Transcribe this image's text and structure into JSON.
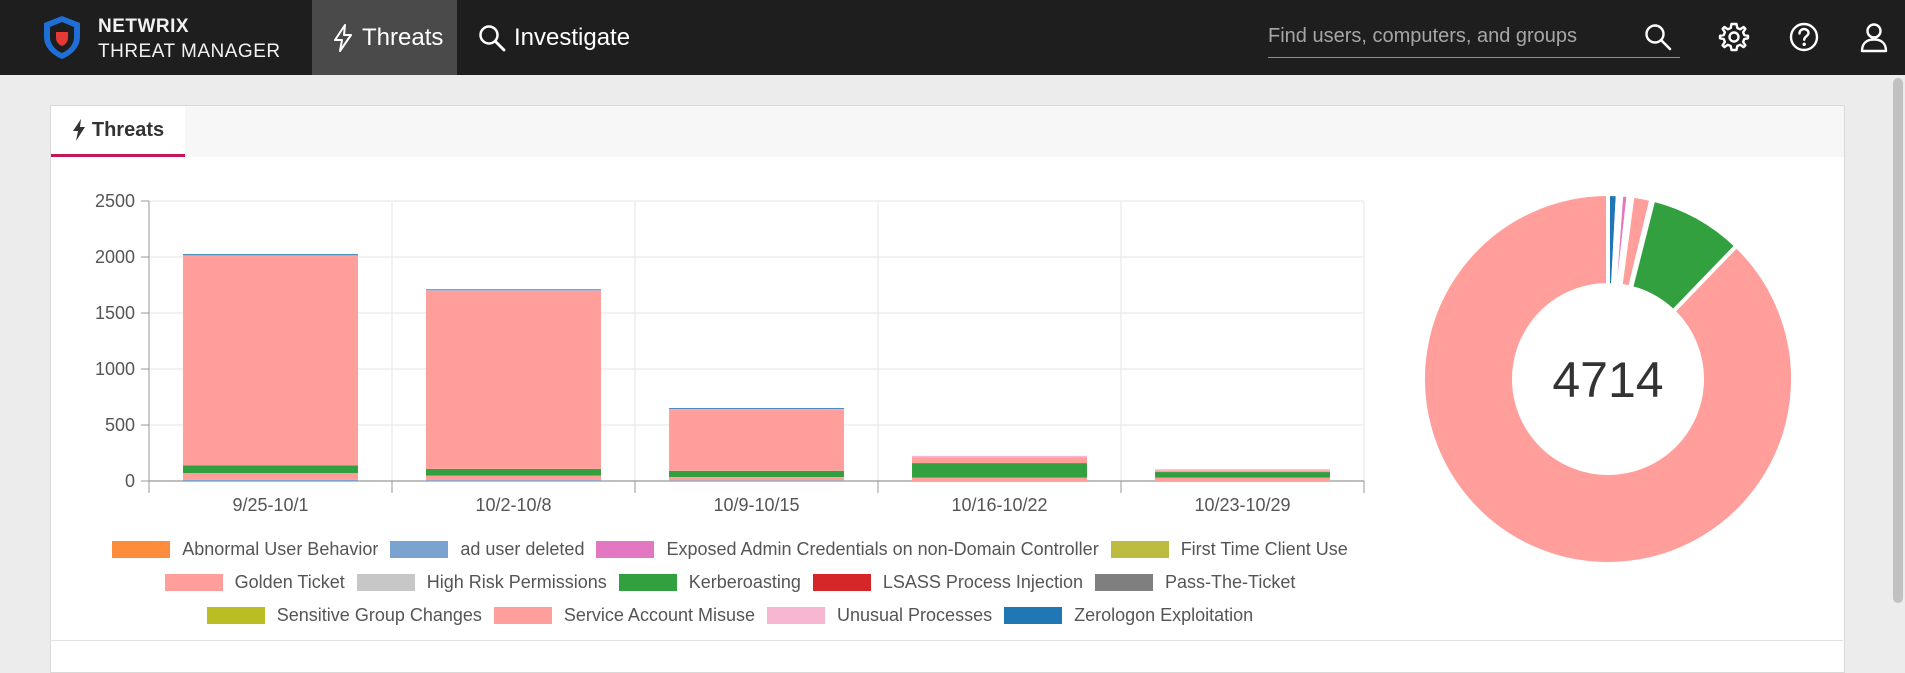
{
  "app": {
    "brand_line1": "NETWRIX",
    "brand_line2": "THREAT MANAGER"
  },
  "nav": {
    "threats_label": "Threats",
    "investigate_label": "Investigate"
  },
  "search": {
    "placeholder": "Find users, computers, and groups"
  },
  "icons": {
    "logo": "netwrix-shield-icon",
    "threats": "lightning-bolt-icon",
    "investigate": "magnifier-icon",
    "search": "search-icon",
    "settings": "gear-icon",
    "help": "question-circle-icon",
    "user": "user-icon"
  },
  "panel": {
    "tab_label": "Threats"
  },
  "colors": {
    "accent": "#c2185b",
    "topbar": "#1e1e1e"
  },
  "chart_data": [
    {
      "type": "bar",
      "stacked": true,
      "categories": [
        "9/25-10/1",
        "10/2-10/8",
        "10/9-10/15",
        "10/16-10/22",
        "10/23-10/29"
      ],
      "ylim": [
        0,
        2500
      ],
      "yticks": [
        0,
        500,
        1000,
        1500,
        2000,
        2500
      ],
      "grid": true,
      "legend_position": "bottom",
      "series": [
        {
          "name": "Abnormal User Behavior",
          "color": "#fd8d3c",
          "values": [
            0,
            0,
            0,
            0,
            0
          ]
        },
        {
          "name": "ad user deleted",
          "color": "#7ba3cf",
          "values": [
            10,
            8,
            6,
            0,
            0
          ]
        },
        {
          "name": "Exposed Admin Credentials on non-Domain Controller",
          "color": "#e377c2",
          "values": [
            0,
            0,
            0,
            0,
            0
          ]
        },
        {
          "name": "First Time Client Use",
          "color": "#bcbd40",
          "values": [
            0,
            0,
            0,
            0,
            0
          ]
        },
        {
          "name": "Golden Ticket",
          "color": "#ff9e9a",
          "values": [
            60,
            40,
            30,
            30,
            30
          ]
        },
        {
          "name": "High Risk Permissions",
          "color": "#c7c7c7",
          "values": [
            0,
            0,
            0,
            0,
            0
          ]
        },
        {
          "name": "Kerberoasting",
          "color": "#33a040",
          "values": [
            70,
            60,
            55,
            130,
            50
          ]
        },
        {
          "name": "LSASS Process Injection",
          "color": "#d62728",
          "values": [
            0,
            0,
            0,
            0,
            0
          ]
        },
        {
          "name": "Pass-The-Ticket",
          "color": "#7f7f7f",
          "values": [
            0,
            0,
            0,
            0,
            0
          ]
        },
        {
          "name": "Sensitive Group Changes",
          "color": "#bcbd22",
          "values": [
            0,
            0,
            0,
            0,
            0
          ]
        },
        {
          "name": "Service Account Misuse",
          "color": "#ff9e9a",
          "values": [
            1870,
            1590,
            550,
            50,
            15
          ]
        },
        {
          "name": "Unusual Processes",
          "color": "#f7b6d2",
          "values": [
            5,
            5,
            5,
            15,
            10
          ]
        },
        {
          "name": "Zerologon Exploitation",
          "color": "#1f77b4",
          "values": [
            10,
            8,
            6,
            0,
            0
          ]
        }
      ]
    },
    {
      "type": "pie",
      "donut": true,
      "center_label": "4714",
      "slices": [
        {
          "name": "Zerologon Exploitation",
          "color": "#1f77b4",
          "value": 40
        },
        {
          "name": "ad user deleted",
          "color": "#7ba3cf",
          "value": 14
        },
        {
          "name": "Exposed Admin Credentials on non-Domain Controller",
          "color": "#e377c2",
          "value": 30
        },
        {
          "name": "Unusual Processes",
          "color": "#f7b6d2",
          "value": 16
        },
        {
          "name": "Golden Ticket",
          "color": "#ff9e9a",
          "value": 78
        },
        {
          "name": "High Risk Permissions",
          "color": "#c7c7c7",
          "value": 8
        },
        {
          "name": "Kerberoasting",
          "color": "#33a040",
          "value": 390
        },
        {
          "name": "Service Account Misuse",
          "color": "#ff9e9a",
          "value": 4138
        }
      ]
    }
  ]
}
